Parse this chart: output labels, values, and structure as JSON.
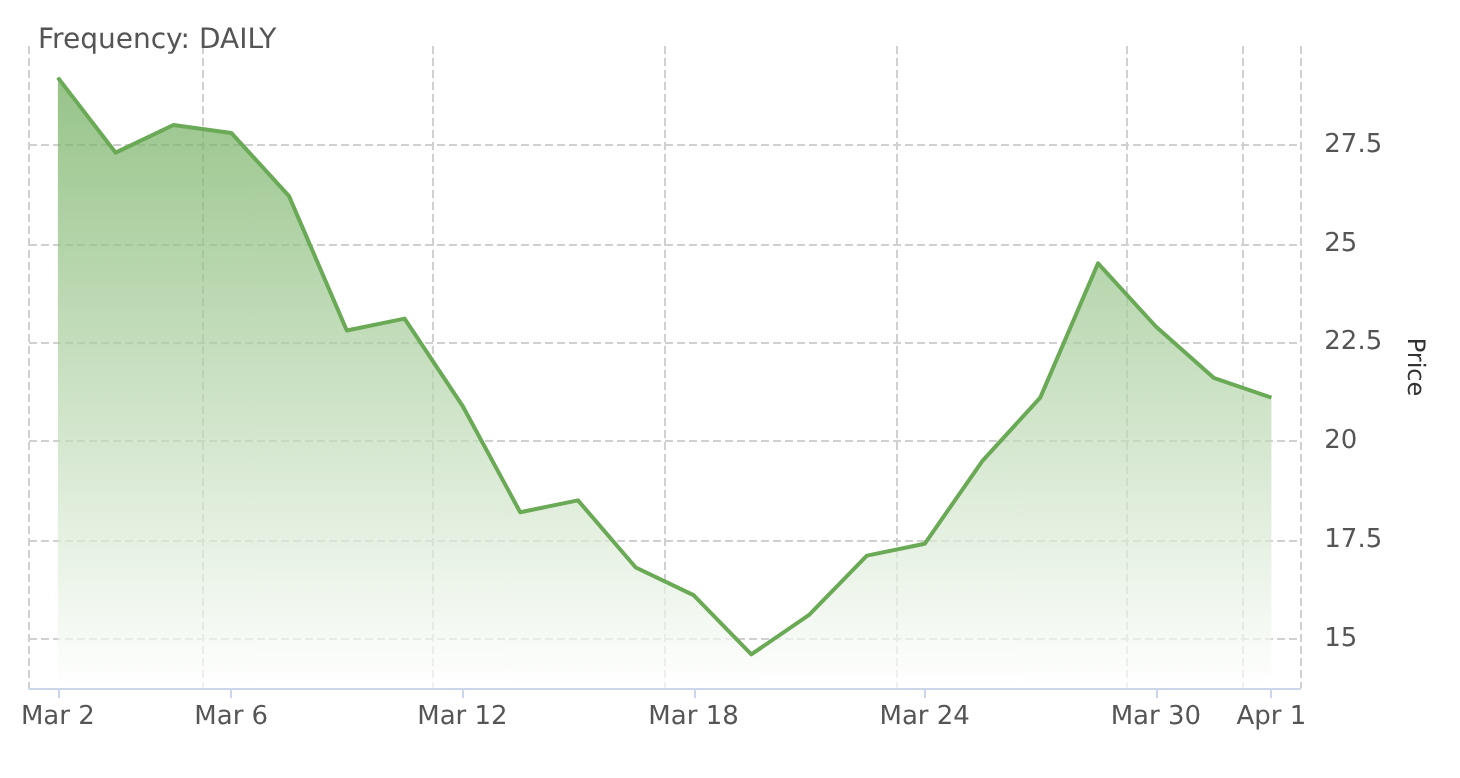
{
  "chart_data": {
    "type": "area",
    "title": "Frequency: DAILY",
    "ylabel": "Price",
    "categories": [
      "Mar 2",
      null,
      null,
      "Mar 6",
      null,
      null,
      null,
      "Mar 12",
      null,
      null,
      null,
      "Mar 18",
      null,
      null,
      null,
      "Mar 24",
      null,
      null,
      null,
      "Mar 30",
      null,
      "Apr 1"
    ],
    "series": [
      {
        "color": "#6aaa56",
        "values": [
          29.2,
          27.3,
          28.0,
          27.8,
          26.2,
          22.8,
          23.1,
          20.9,
          18.2,
          18.5,
          16.8,
          16.1,
          14.6,
          15.6,
          17.1,
          17.4,
          19.5,
          21.1,
          24.5,
          22.9,
          21.6,
          21.1
        ]
      }
    ],
    "ylim": [
      13.75,
      30
    ],
    "yticks": [
      15,
      17.5,
      20,
      22.5,
      25,
      27.5
    ],
    "grid": true,
    "marker": "none",
    "line_style": "solid"
  }
}
